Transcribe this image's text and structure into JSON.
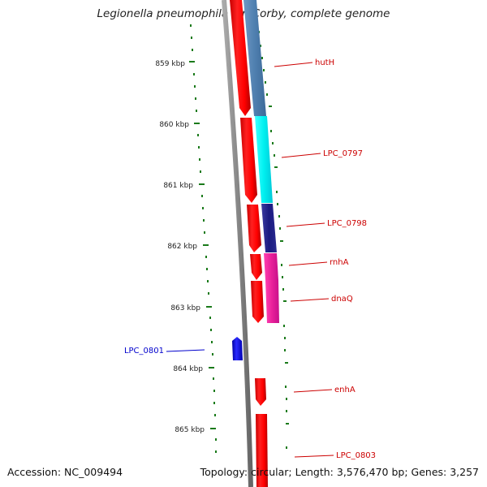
{
  "title": "Legionella pneumophila str. Corby, complete genome",
  "footer": {
    "accession": "Accession: NC_009494",
    "summary": "Topology: circular; Length: 3,576,470 bp; Genes: 3,257"
  },
  "ticks": [
    "859 kbp",
    "860 kbp",
    "861 kbp",
    "862 kbp",
    "863 kbp",
    "864 kbp",
    "865 kbp"
  ],
  "genes": [
    {
      "label": "hutH",
      "color": "#cc0000"
    },
    {
      "label": "LPC_0797",
      "color": "#cc0000"
    },
    {
      "label": "LPC_0798",
      "color": "#cc0000"
    },
    {
      "label": "rnhA",
      "color": "#cc0000"
    },
    {
      "label": "dnaQ",
      "color": "#cc0000"
    },
    {
      "label": "LPC_0801",
      "color": "#0000cc"
    },
    {
      "label": "enhA",
      "color": "#cc0000"
    },
    {
      "label": "LPC_0803",
      "color": "#cc0000"
    }
  ],
  "colors": {
    "forward_strand": "#ff0000",
    "reverse_strand": "#0000ee",
    "backbone": "#888888",
    "tick": "#1a7a1a",
    "cog_blue": "#4f7faf",
    "cog_cyan": "#00f0f0",
    "cog_navy": "#1a1a80",
    "cog_magenta": "#e8209a"
  }
}
